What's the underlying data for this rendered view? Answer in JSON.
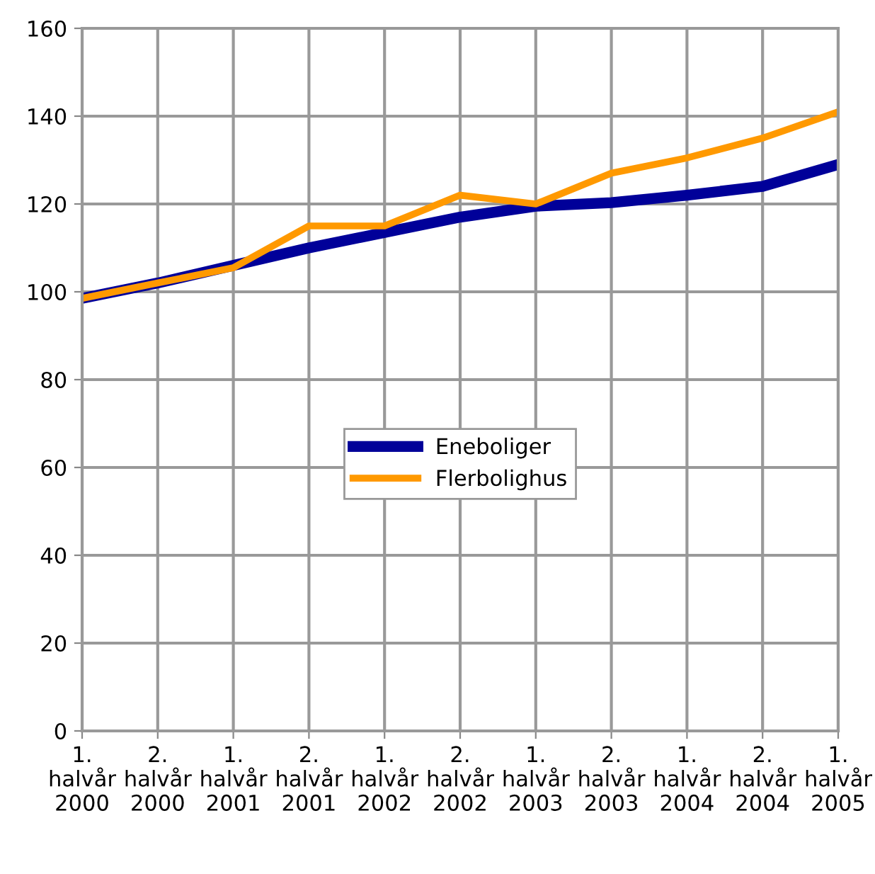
{
  "chart_data": {
    "type": "line",
    "categories": [
      "1.\nhalvår\n2000",
      "2.\nhalvår\n2000",
      "1.\nhalvår\n2001",
      "2.\nhalvår\n2001",
      "1.\nhalvår\n2002",
      "2.\nhalvår\n2002",
      "1.\nhalvår\n2003",
      "2.\nhalvår\n2003",
      "1.\nhalvår\n2004",
      "2.\nhalvår\n2004",
      "1.\nhalvår\n2005"
    ],
    "series": [
      {
        "name": "Eneboliger",
        "color": "#000099",
        "values": [
          98.5,
          102,
          106,
          110,
          113.5,
          117,
          119.5,
          120.3,
          122,
          124,
          129
        ]
      },
      {
        "name": "Flerbolighus",
        "color": "#ff9900",
        "values": [
          98.5,
          102,
          105.5,
          115,
          115,
          122,
          120,
          127,
          130.5,
          135,
          141
        ]
      }
    ],
    "ylim": [
      0,
      160
    ],
    "yticks": [
      0,
      20,
      40,
      60,
      80,
      100,
      120,
      140,
      160
    ],
    "grid": true,
    "legend": "center",
    "marker": "none",
    "line_style": "solid"
  }
}
